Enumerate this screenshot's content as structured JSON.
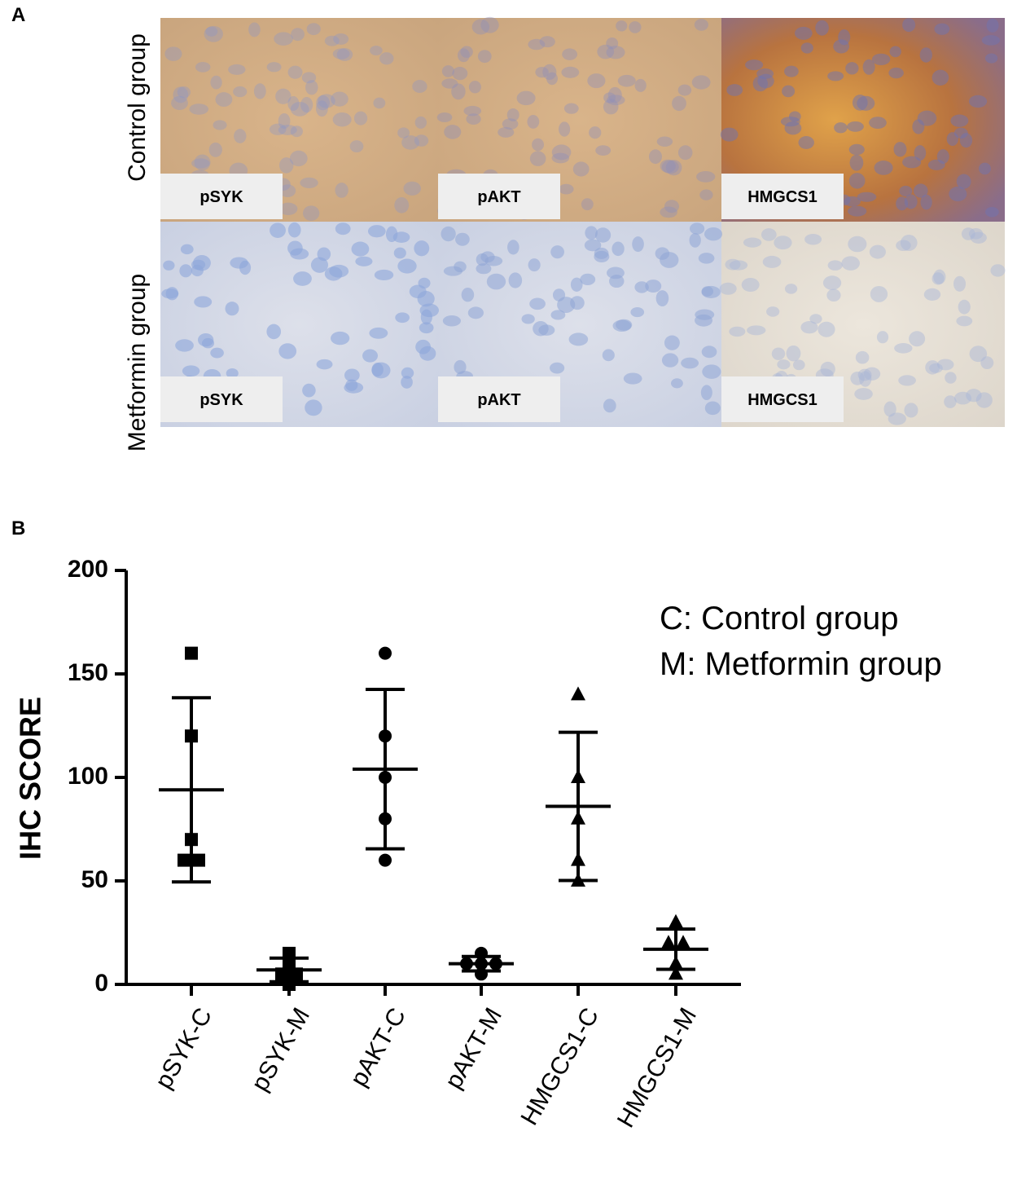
{
  "panels": {
    "a_label": "A",
    "b_label": "B",
    "row_labels": [
      "Control group",
      "Metformin group"
    ],
    "image_labels": [
      [
        "pSYK",
        "pAKT",
        "HMGCS1"
      ],
      [
        "pSYK",
        "pAKT",
        "HMGCS1"
      ]
    ]
  },
  "chart_data": {
    "type": "scatter",
    "ylabel": "IHC SCORE",
    "categories": [
      "pSYK-C",
      "pSYK-M",
      "pAKT-C",
      "pAKT-M",
      "HMGCS1-C",
      "HMGCS1-M"
    ],
    "markers": [
      "square",
      "square",
      "circle",
      "circle",
      "triangle",
      "triangle"
    ],
    "values": [
      [
        160,
        120,
        70,
        60,
        60
      ],
      [
        15,
        10,
        5,
        5,
        0
      ],
      [
        160,
        120,
        100,
        80,
        60
      ],
      [
        15,
        10,
        10,
        10,
        5
      ],
      [
        140,
        100,
        80,
        60,
        50
      ],
      [
        30,
        20,
        20,
        10,
        5
      ]
    ],
    "mean": [
      94,
      7,
      104,
      10,
      86,
      17
    ],
    "sd": [
      44.5,
      5.7,
      38.5,
      3.5,
      35.8,
      9.7
    ],
    "color": "#000000",
    "ylim": [
      0,
      200
    ],
    "yticks": [
      0,
      50,
      100,
      150,
      200
    ],
    "annotations": [
      "C: Control group",
      "M: Metformin group"
    ]
  }
}
